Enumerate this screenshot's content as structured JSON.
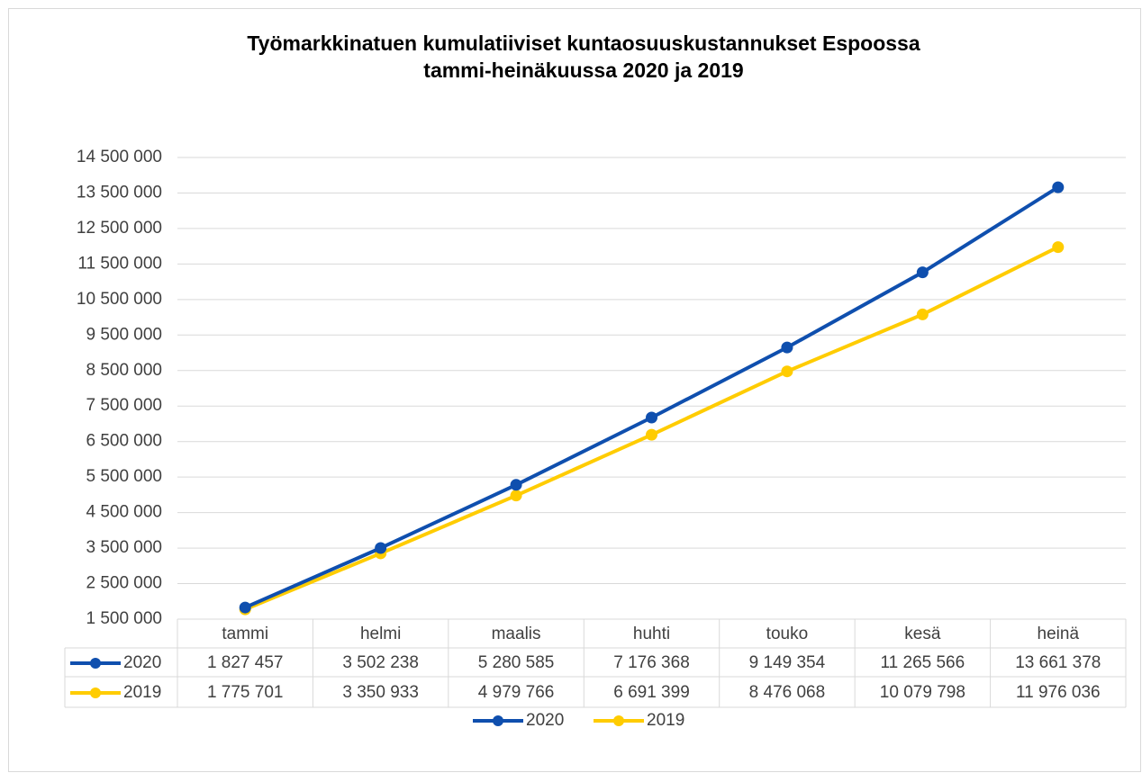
{
  "chart_data": {
    "type": "line",
    "title": "Työmarkkinatuen kumulatiiviset kuntaosuuskustannukset Espoossa tammi-heinäkuussa 2020 ja 2019",
    "categories": [
      "tammi",
      "helmi",
      "maalis",
      "huhti",
      "touko",
      "kesä",
      "heinä"
    ],
    "series": [
      {
        "name": "2020",
        "color": "#0f4fae",
        "values": [
          1827457,
          3502238,
          5280585,
          7176368,
          9149354,
          11265566,
          13661378
        ],
        "value_labels": [
          "1 827 457",
          "3 502 238",
          "5 280 585",
          "7 176 368",
          "9 149 354",
          "11 265 566",
          "13 661 378"
        ]
      },
      {
        "name": "2019",
        "color": "#ffcc00",
        "values": [
          1775701,
          3350933,
          4979766,
          6691399,
          8476068,
          10079798,
          11976036
        ],
        "value_labels": [
          "1 775 701",
          "3 350 933",
          "4 979 766",
          "6 691 399",
          "8 476 068",
          "10 079 798",
          "11 976 036"
        ]
      }
    ],
    "ylim": [
      1500000,
      14500000
    ],
    "yticks": [
      {
        "value": 1500000,
        "label": "1 500 000"
      },
      {
        "value": 2500000,
        "label": "2 500 000"
      },
      {
        "value": 3500000,
        "label": "3 500 000"
      },
      {
        "value": 4500000,
        "label": "4 500 000"
      },
      {
        "value": 5500000,
        "label": "5 500 000"
      },
      {
        "value": 6500000,
        "label": "6 500 000"
      },
      {
        "value": 7500000,
        "label": "7 500 000"
      },
      {
        "value": 8500000,
        "label": "8 500 000"
      },
      {
        "value": 9500000,
        "label": "9 500 000"
      },
      {
        "value": 10500000,
        "label": "10 500 000"
      },
      {
        "value": 11500000,
        "label": "11 500 000"
      },
      {
        "value": 12500000,
        "label": "12 500 000"
      },
      {
        "value": 13500000,
        "label": "13 500 000"
      },
      {
        "value": 14500000,
        "label": "14 500 000"
      }
    ],
    "grid": true,
    "legend": "bottom"
  }
}
